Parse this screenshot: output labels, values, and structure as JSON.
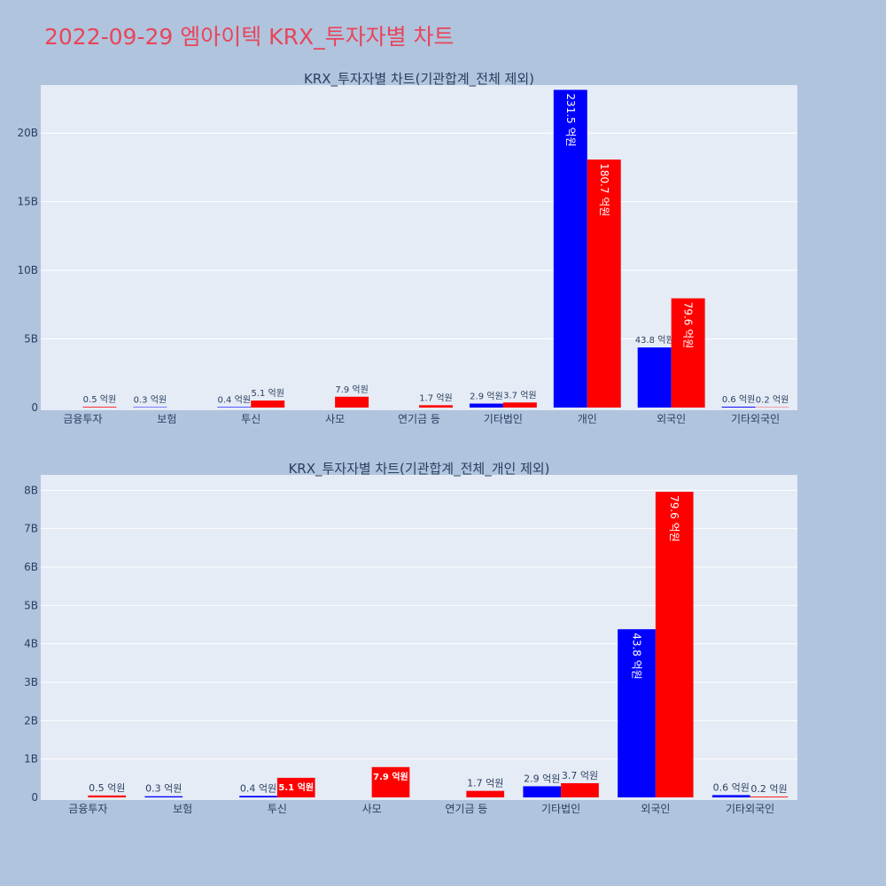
{
  "title": "2022-09-29 엠아이텍 KRX_투자자별 차트",
  "colors": {
    "series_a": "#0000ff",
    "series_b": "#ff0000",
    "title": "#e8455a"
  },
  "chart_data": [
    {
      "type": "bar",
      "title": "KRX_투자자별 차트(기관합계_전체 제외)",
      "categories": [
        "금융투자",
        "보험",
        "투신",
        "사모",
        "연기금 등",
        "기타법인",
        "개인",
        "외국인",
        "기타외국인"
      ],
      "series": [
        {
          "color": "#0000ff",
          "values": [
            0,
            0.03,
            0.04,
            0,
            0,
            0.29,
            23.15,
            4.38,
            0.06
          ],
          "labels": [
            "",
            "0.3 억원",
            "0.4 억원",
            "",
            "",
            "2.9 억원",
            "231.5 억원",
            "43.8 억원",
            "0.6 억원"
          ]
        },
        {
          "color": "#ff0000",
          "values": [
            0.05,
            0,
            0.51,
            0.79,
            0.17,
            0.37,
            18.07,
            7.96,
            0.02
          ],
          "labels": [
            "0.5 억원",
            "",
            "5.1 억원",
            "7.9 억원",
            "1.7 억원",
            "3.7 억원",
            "180.7 억원",
            "79.6 억원",
            "0.2 억원"
          ]
        }
      ],
      "ylim": [
        0,
        23.5
      ],
      "yticks": [
        0,
        5,
        10,
        15,
        20
      ],
      "ytick_labels": [
        "0",
        "5B",
        "10B",
        "15B",
        "20B"
      ],
      "grid": true
    },
    {
      "type": "bar",
      "title": "KRX_투자자별 차트(기관합계_전체_개인 제외)",
      "categories": [
        "금융투자",
        "보험",
        "투신",
        "사모",
        "연기금 등",
        "기타법인",
        "외국인",
        "기타외국인"
      ],
      "series": [
        {
          "color": "#0000ff",
          "values": [
            0,
            0.03,
            0.04,
            0,
            0,
            0.29,
            4.38,
            0.06
          ],
          "labels": [
            "",
            "0.3 억원",
            "0.4 억원",
            "",
            "",
            "2.9 억원",
            "43.8 억원",
            "0.6 억원"
          ]
        },
        {
          "color": "#ff0000",
          "values": [
            0.05,
            0,
            0.51,
            0.79,
            0.17,
            0.37,
            7.96,
            0.02
          ],
          "labels": [
            "0.5 억원",
            "",
            "5.1 억원",
            "7.9 억원",
            "1.7 억원",
            "3.7 억원",
            "79.6 억원",
            "0.2 억원"
          ]
        }
      ],
      "ylim": [
        0,
        8.4
      ],
      "yticks": [
        0,
        1,
        2,
        3,
        4,
        5,
        6,
        7,
        8
      ],
      "ytick_labels": [
        "0",
        "1B",
        "2B",
        "3B",
        "4B",
        "5B",
        "6B",
        "7B",
        "8B"
      ],
      "grid": true
    }
  ]
}
